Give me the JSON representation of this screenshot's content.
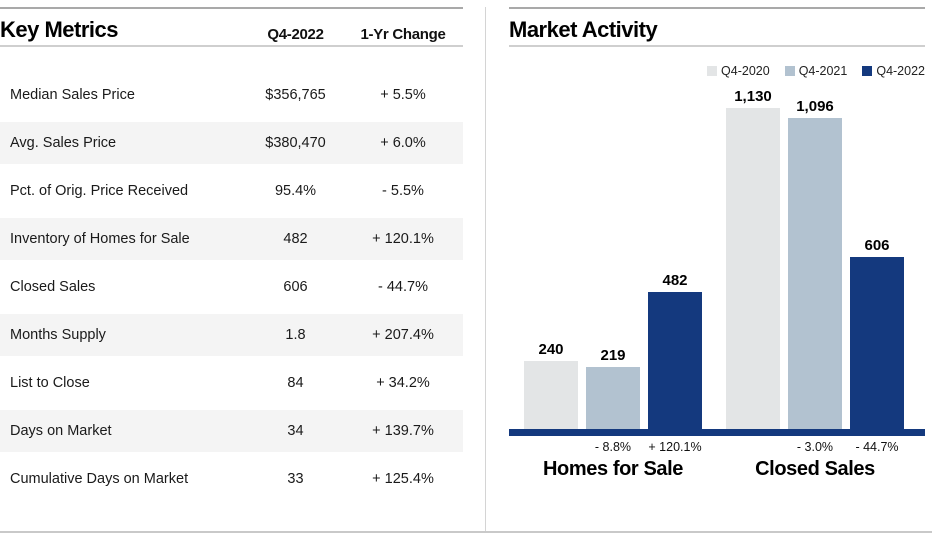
{
  "key_metrics": {
    "title": "Key Metrics",
    "col_value_header": "Q4-2022",
    "col_change_header": "1-Yr Change",
    "rows": [
      {
        "label": "Median Sales Price",
        "value": "$356,765",
        "change": "+ 5.5%"
      },
      {
        "label": "Avg. Sales Price",
        "value": "$380,470",
        "change": "+ 6.0%"
      },
      {
        "label": "Pct. of Orig. Price Received",
        "value": "95.4%",
        "change": "- 5.5%"
      },
      {
        "label": "Inventory of Homes for Sale",
        "value": "482",
        "change": "+ 120.1%"
      },
      {
        "label": "Closed Sales",
        "value": "606",
        "change": "- 44.7%"
      },
      {
        "label": "Months Supply",
        "value": "1.8",
        "change": "+ 207.4%"
      },
      {
        "label": "List to Close",
        "value": "84",
        "change": "+ 34.2%"
      },
      {
        "label": "Days on Market",
        "value": "34",
        "change": "+ 139.7%"
      },
      {
        "label": "Cumulative Days on Market",
        "value": "33",
        "change": "+ 125.4%"
      }
    ]
  },
  "market_activity": {
    "title": "Market Activity"
  },
  "chart_data": {
    "type": "bar",
    "title": "Market Activity",
    "categories": [
      "Homes for Sale",
      "Closed Sales"
    ],
    "series": [
      {
        "name": "Q4-2020",
        "color": "#e3e5e6",
        "values": [
          240,
          1130
        ]
      },
      {
        "name": "Q4-2021",
        "color": "#b2c2d0",
        "values": [
          219,
          1096
        ]
      },
      {
        "name": "Q4-2022",
        "color": "#14397e",
        "values": [
          482,
          606
        ]
      }
    ],
    "value_labels": [
      [
        "240",
        "1,130"
      ],
      [
        "219",
        "1,096"
      ],
      [
        "482",
        "606"
      ]
    ],
    "change_labels": [
      [
        "",
        ""
      ],
      [
        "- 8.8%",
        "- 3.0%"
      ],
      [
        "+ 120.1%",
        "- 44.7%"
      ]
    ],
    "ylim": [
      0,
      1130
    ],
    "grid": false,
    "legend_position": "top-right",
    "axis_color": "#14397e"
  }
}
